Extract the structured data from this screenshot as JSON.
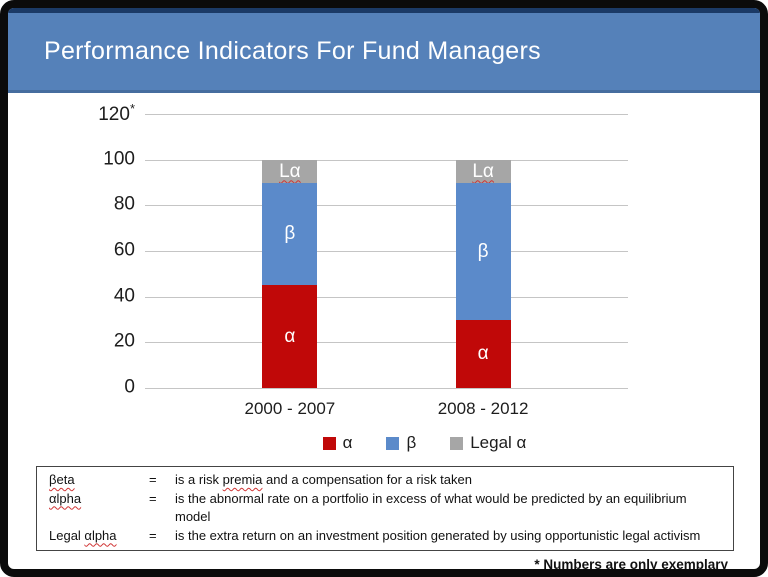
{
  "header": {
    "title": "Performance Indicators For Fund Managers"
  },
  "chart_data": {
    "type": "bar",
    "stacked": true,
    "categories": [
      "2000 - 2007",
      "2008 - 2012"
    ],
    "series": [
      {
        "name": "α",
        "color": "#c00808",
        "values": [
          45,
          30
        ],
        "bar_label": "α",
        "bar_label_squiggle": false
      },
      {
        "name": "β",
        "color": "#5b8aca",
        "values": [
          45,
          60
        ],
        "bar_label": "β",
        "bar_label_squiggle": false
      },
      {
        "name": "Legal α",
        "color": "#a6a6a6",
        "values": [
          10,
          10
        ],
        "bar_label": "Lα",
        "bar_label_squiggle": true
      }
    ],
    "ylim": [
      0,
      120
    ],
    "yticks": [
      0,
      20,
      40,
      60,
      80,
      100,
      120
    ],
    "axis_note": "*",
    "grid": true,
    "legend_position": "bottom"
  },
  "definitions": {
    "rows": [
      {
        "term_prefix": "",
        "term": "βeta",
        "eq": "=",
        "text_before": "is a risk ",
        "text_marked": "premia",
        "text_after": " and a compensation for a risk taken"
      },
      {
        "term_prefix": "",
        "term": "αlpha",
        "eq": "=",
        "text_before": "is the abnormal rate on a portfolio in excess of what would be predicted by an equilibrium model",
        "text_marked": "",
        "text_after": ""
      },
      {
        "term_prefix": "Legal ",
        "term": "αlpha",
        "eq": "=",
        "text_before": "is the extra return on an investment position generated by using opportunistic legal activism",
        "text_marked": "",
        "text_after": ""
      }
    ]
  },
  "footnote": "* Numbers are only exemplary",
  "colors": {
    "header_bg": "#5581b9",
    "header_top_line": "#1b3a66",
    "alpha": "#c00808",
    "beta": "#5b8aca",
    "legal_alpha": "#a6a6a6",
    "gridline": "#c5c5c5"
  }
}
